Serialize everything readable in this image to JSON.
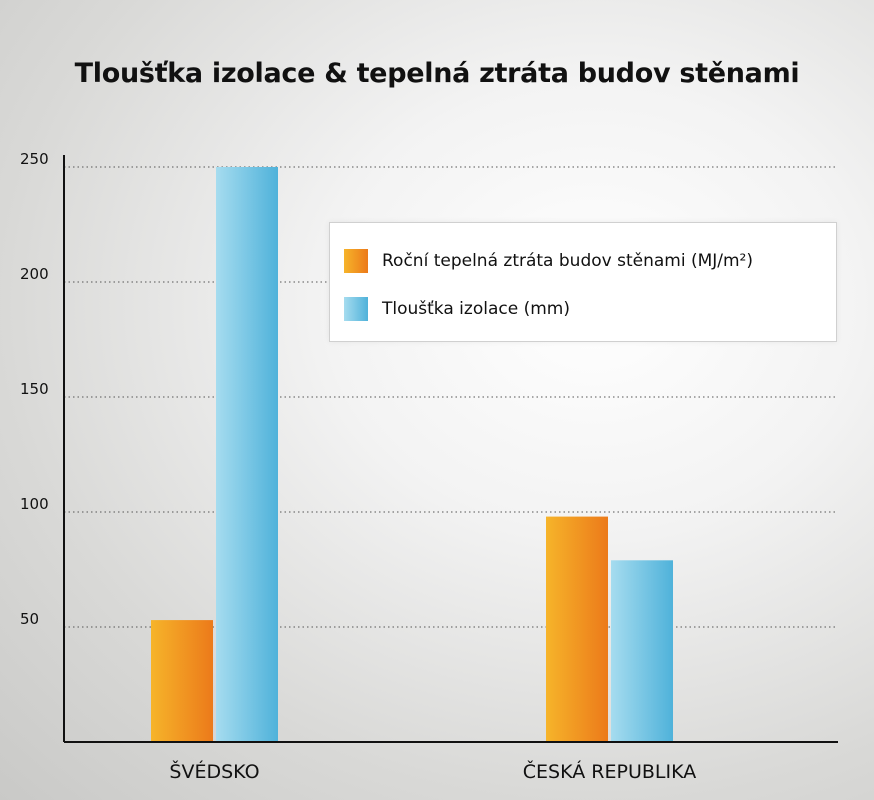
{
  "title": "Tloušťka izolace & tepelná ztráta budov stěnami",
  "colors": {
    "orange": "#f08a1c",
    "blue": "#5fb9dc"
  },
  "legend": [
    {
      "label": "Roční tepelná ztráta budov stěnami (MJ/m²)",
      "color": "orange"
    },
    {
      "label": "Tloušťka izolace (mm)",
      "color": "blue"
    }
  ],
  "chart_data": {
    "type": "bar",
    "title": "Tloušťka izolace & tepelná ztráta budov stěnami",
    "categories": [
      "ŠVÉDSKO",
      "ČESKÁ REPUBLIKA"
    ],
    "series": [
      {
        "name": "Roční tepelná ztráta budov stěnami (MJ/m²)",
        "values": [
          53,
          98
        ]
      },
      {
        "name": "Tloušťka izolace (mm)",
        "values": [
          250,
          79
        ]
      }
    ],
    "yticks": [
      50,
      100,
      150,
      200,
      250
    ],
    "ylim": [
      0,
      250
    ],
    "grid": true,
    "legend_position": "top-right",
    "xlabel": "",
    "ylabel": ""
  }
}
